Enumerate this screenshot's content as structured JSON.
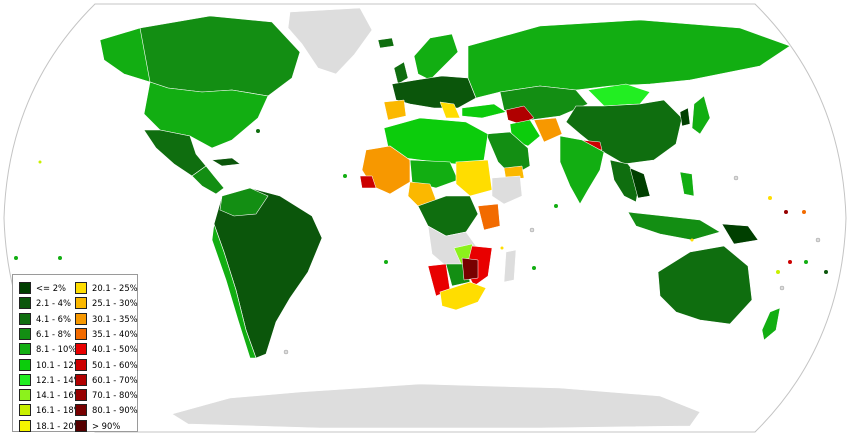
{
  "map": {
    "colors": {
      "ocean": "#ffffff",
      "frame": "#c4c4c4",
      "no_data": "#dddddd",
      "border": "#ffffff"
    }
  },
  "legend": {
    "items": [
      {
        "label": "<= 2%",
        "color": "#003f00"
      },
      {
        "label": "2.1 - 4%",
        "color": "#0b560b"
      },
      {
        "label": "4.1 - 6%",
        "color": "#0f6e0f"
      },
      {
        "label": "6.1 - 8%",
        "color": "#138e13"
      },
      {
        "label": "8.1 - 10%",
        "color": "#12ae12"
      },
      {
        "label": "10.1 - 12%",
        "color": "#0ccc0c"
      },
      {
        "label": "12.1 - 14%",
        "color": "#22ee22"
      },
      {
        "label": "14.1 - 16%",
        "color": "#8cf21c"
      },
      {
        "label": "16.1 - 18%",
        "color": "#c8f000"
      },
      {
        "label": "18.1 - 20%",
        "color": "#f5f500"
      },
      {
        "label": "20.1 - 25%",
        "color": "#ffdd00"
      },
      {
        "label": "25.1 - 30%",
        "color": "#fbb800"
      },
      {
        "label": "30.1 - 35%",
        "color": "#f79800"
      },
      {
        "label": "35.1 - 40%",
        "color": "#f26b00"
      },
      {
        "label": "40.1 - 50%",
        "color": "#e80000"
      },
      {
        "label": "50.1 - 60%",
        "color": "#cc0000"
      },
      {
        "label": "60.1 - 70%",
        "color": "#b00000"
      },
      {
        "label": "70.1 - 80%",
        "color": "#960000"
      },
      {
        "label": "80.1 - 90%",
        "color": "#770000"
      },
      {
        "label": "> 90%",
        "color": "#550000"
      }
    ]
  },
  "regions": [
    {
      "name": "canada",
      "color": "#138e13"
    },
    {
      "name": "usa",
      "color": "#12ae12"
    },
    {
      "name": "mexico",
      "color": "#0f6e0f"
    },
    {
      "name": "south-america",
      "color": "#0b560b"
    },
    {
      "name": "russia",
      "color": "#12ae12"
    },
    {
      "name": "china",
      "color": "#0f6e0f"
    },
    {
      "name": "india",
      "color": "#12ae12"
    },
    {
      "name": "sahara",
      "color": "#0ccc0c"
    },
    {
      "name": "sahel-west",
      "color": "#f79800"
    },
    {
      "name": "sudan",
      "color": "#ffdd00"
    },
    {
      "name": "southern-africa",
      "color": "#ffdd00"
    },
    {
      "name": "australia",
      "color": "#0f6e0f"
    },
    {
      "name": "antarctica",
      "color": "#dddddd"
    }
  ]
}
